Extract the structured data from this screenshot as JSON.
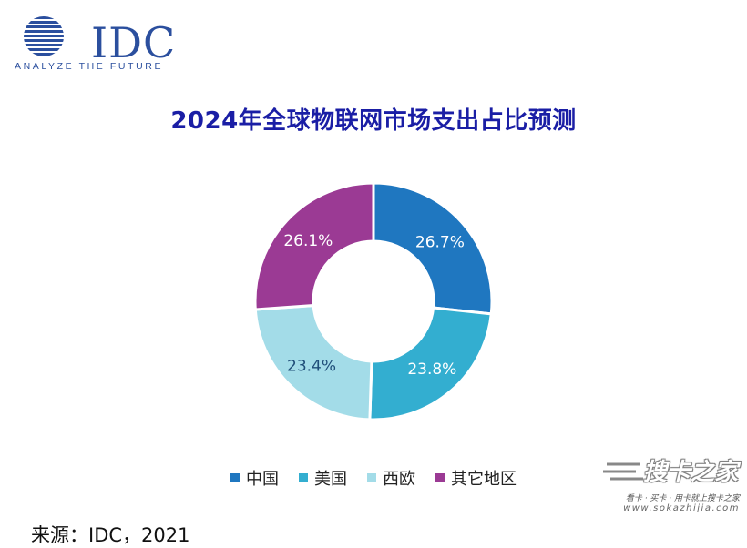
{
  "logo": {
    "name": "IDC",
    "tagline": "ANALYZE THE FUTURE",
    "color": "#2b4f9e"
  },
  "source": "来源：IDC，2021",
  "watermark": {
    "name": "搜卡之家",
    "slogan": "看卡 · 买卡 · 用卡就上搜卡之家",
    "url": "www.sokazhijia.com"
  },
  "chart_data": {
    "type": "pie",
    "donut": true,
    "title": "2024年全球物联网市场支出占比预测",
    "categories": [
      "中国",
      "美国",
      "西欧",
      "其它地区"
    ],
    "values": [
      26.7,
      23.8,
      23.4,
      26.1
    ],
    "labels": [
      "26.7%",
      "23.8%",
      "23.4%",
      "26.1%"
    ],
    "colors": [
      "#1f77c0",
      "#33aed0",
      "#a3dce8",
      "#9b3a94"
    ],
    "label_colors": [
      "#ffffff",
      "#ffffff",
      "#1f4e79",
      "#ffffff"
    ],
    "start": "12 o'clock",
    "direction": "clockwise",
    "legend": "bottom"
  }
}
